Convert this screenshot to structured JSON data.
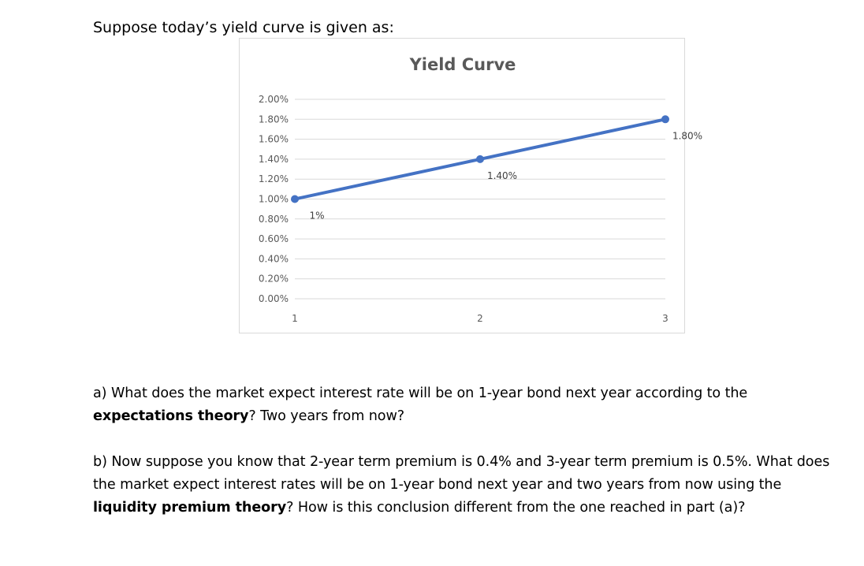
{
  "intro": "Suppose today’s yield curve is given as:",
  "chart_data": {
    "type": "line",
    "title": "Yield Curve",
    "categories": [
      "1",
      "2",
      "3"
    ],
    "values": [
      1.0,
      1.4,
      1.8
    ],
    "value_labels": [
      "1%",
      "1.40%",
      "1.80%"
    ],
    "y_ticks": [
      "0.00%",
      "0.20%",
      "0.40%",
      "0.60%",
      "0.80%",
      "1.00%",
      "1.20%",
      "1.40%",
      "1.60%",
      "1.80%",
      "2.00%"
    ],
    "ylim": [
      0,
      2.0
    ],
    "grid": true,
    "xlabel": "",
    "ylabel": "",
    "line_color": "#4472c4",
    "grid_color": "#d9d9d9",
    "text_color": "#595959"
  },
  "question_a": {
    "lead": "a) What does the market expect interest rate will be on 1-year bond next year according to the ",
    "bold": "expectations theory",
    "tail": "? Two years from now?"
  },
  "question_b": {
    "lead": "b) Now suppose you know that 2-year term premium is 0.4% and 3-year term premium is 0.5%. What does the market expect interest rates will be on 1-year bond next year and two years from now using the ",
    "bold": "liquidity premium theory",
    "tail": "? How is this conclusion different from the one reached in part (a)?"
  }
}
